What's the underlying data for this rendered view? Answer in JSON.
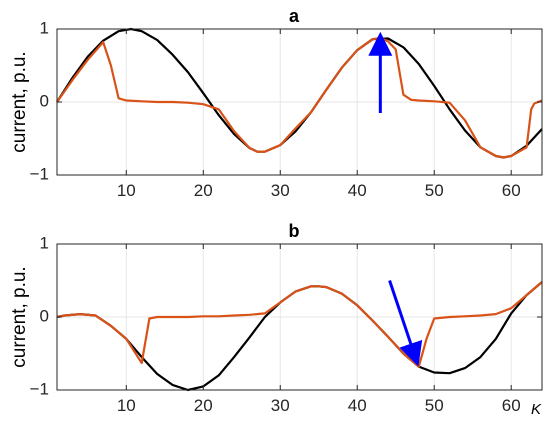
{
  "chart_data": [
    {
      "type": "line",
      "title": "a",
      "ylabel": "current, p.u.",
      "xlabel": "",
      "xlim": [
        1,
        64
      ],
      "ylim": [
        -1,
        1
      ],
      "xticks": [
        10,
        20,
        30,
        40,
        50,
        60
      ],
      "yticks": [
        -1,
        0,
        1
      ],
      "xticklabels": [
        "10",
        "20",
        "30",
        "40",
        "50",
        "60"
      ],
      "yticklabels": [
        "−1",
        "0",
        "1"
      ],
      "grid": true,
      "series": [
        {
          "color": "#000000",
          "x": [
            1,
            3,
            5,
            7,
            9,
            10.6,
            12,
            14,
            16,
            18,
            20,
            22,
            24,
            26,
            27,
            28,
            30,
            32,
            34,
            36,
            38,
            40,
            42,
            44,
            46,
            48,
            50,
            52,
            54,
            56,
            58,
            59,
            60,
            62,
            64
          ],
          "y": [
            0,
            0.33,
            0.62,
            0.84,
            0.97,
            1,
            0.97,
            0.85,
            0.65,
            0.41,
            0.12,
            -0.18,
            -0.44,
            -0.63,
            -0.68,
            -0.68,
            -0.59,
            -0.4,
            -0.14,
            0.17,
            0.47,
            0.71,
            0.86,
            0.87,
            0.75,
            0.52,
            0.22,
            -0.1,
            -0.39,
            -0.62,
            -0.74,
            -0.76,
            -0.74,
            -0.6,
            -0.37
          ]
        },
        {
          "color": "#d95319",
          "x": [
            1,
            3,
            5,
            7,
            8,
            9,
            10,
            12,
            14,
            16,
            18,
            20,
            22,
            24,
            26,
            27,
            28,
            30,
            32,
            34,
            36,
            38,
            40,
            42,
            43,
            44,
            45,
            46,
            47,
            48,
            50,
            52,
            54,
            56,
            58,
            59,
            60,
            62,
            62.6,
            63,
            64
          ],
          "y": [
            0,
            0.3,
            0.58,
            0.82,
            0.5,
            0.05,
            0.02,
            0.01,
            0,
            0,
            -0.01,
            -0.03,
            -0.1,
            -0.4,
            -0.63,
            -0.68,
            -0.68,
            -0.59,
            -0.36,
            -0.14,
            0.17,
            0.47,
            0.71,
            0.86,
            0.88,
            0.83,
            0.72,
            0.1,
            0.03,
            0.02,
            0.01,
            -0.01,
            -0.25,
            -0.62,
            -0.74,
            -0.76,
            -0.74,
            -0.62,
            -0.1,
            -0.02,
            0.02
          ]
        }
      ],
      "annotations": [
        {
          "type": "arrow",
          "color": "#0000ff",
          "from": [
            43,
            -0.15
          ],
          "to": [
            43,
            0.88
          ]
        }
      ]
    },
    {
      "type": "line",
      "title": "b",
      "ylabel": "current, p.u.",
      "xlabel": "K",
      "xlim": [
        1,
        64
      ],
      "ylim": [
        -1,
        1
      ],
      "xticks": [
        10,
        20,
        30,
        40,
        50,
        60
      ],
      "yticks": [
        -1,
        0,
        1
      ],
      "xticklabels": [
        "10",
        "20",
        "30",
        "40",
        "50",
        "60"
      ],
      "yticklabels": [
        "−1",
        "0",
        "1"
      ],
      "grid": true,
      "series": [
        {
          "color": "#000000",
          "x": [
            1,
            2,
            4,
            6,
            8,
            10,
            12,
            14,
            16,
            18,
            20,
            22,
            24,
            26,
            28,
            30,
            32,
            34,
            35,
            36,
            38,
            40,
            42,
            44,
            46,
            48,
            50,
            52,
            54,
            56,
            58,
            60,
            62,
            64
          ],
          "y": [
            0,
            0.02,
            0.04,
            0.02,
            -0.12,
            -0.3,
            -0.55,
            -0.78,
            -0.93,
            -1,
            -0.95,
            -0.8,
            -0.55,
            -0.28,
            0,
            0.2,
            0.35,
            0.42,
            0.42,
            0.41,
            0.32,
            0.16,
            -0.05,
            -0.27,
            -0.5,
            -0.68,
            -0.76,
            -0.77,
            -0.7,
            -0.55,
            -0.3,
            0.05,
            0.3,
            0.48
          ]
        },
        {
          "color": "#d95319",
          "x": [
            1,
            2,
            4,
            6,
            8,
            10,
            12,
            13,
            14,
            16,
            18,
            20,
            22,
            24,
            26,
            28,
            30,
            32,
            34,
            35,
            36,
            38,
            40,
            42,
            44,
            46,
            48,
            49,
            50,
            52,
            54,
            56,
            58,
            60,
            62,
            64
          ],
          "y": [
            0,
            0.02,
            0.04,
            0.02,
            -0.12,
            -0.3,
            -0.63,
            -0.02,
            0,
            0,
            0,
            0.01,
            0.01,
            0.02,
            0.03,
            0.05,
            0.2,
            0.35,
            0.42,
            0.42,
            0.41,
            0.32,
            0.16,
            -0.05,
            -0.27,
            -0.5,
            -0.68,
            -0.3,
            -0.02,
            0,
            0.01,
            0.02,
            0.04,
            0.12,
            0.3,
            0.48
          ]
        }
      ],
      "annotations": [
        {
          "type": "arrow",
          "color": "#0000ff",
          "from": [
            44.2,
            0.5
          ],
          "to": [
            47.7,
            -0.6
          ]
        }
      ]
    }
  ]
}
